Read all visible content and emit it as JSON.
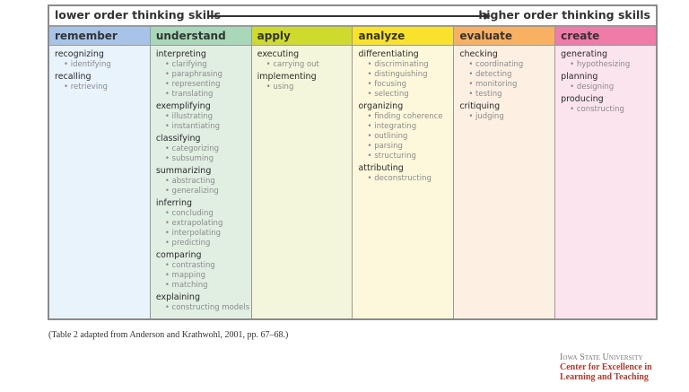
{
  "header": {
    "lower": "lower order thinking skills",
    "higher": "higher order thinking skills"
  },
  "columns": [
    {
      "title": "remember",
      "head_color": "#a7c4e8",
      "body_color": "#e8f3fc",
      "groups": [
        {
          "verb": "recognizing",
          "subs": [
            "identifying"
          ]
        },
        {
          "verb": "recalling",
          "subs": [
            "retrieving"
          ]
        }
      ]
    },
    {
      "title": "understand",
      "head_color": "#a8d8b8",
      "body_color": "#e1efe3",
      "groups": [
        {
          "verb": "interpreting",
          "subs": [
            "clarifying",
            "paraphrasing",
            "representing",
            "translating"
          ]
        },
        {
          "verb": "exemplifying",
          "subs": [
            "illustrating",
            "instantiating"
          ]
        },
        {
          "verb": "classifying",
          "subs": [
            "categorizing",
            "subsuming"
          ]
        },
        {
          "verb": "summarizing",
          "subs": [
            "abstracting",
            "generalizing"
          ]
        },
        {
          "verb": "inferring",
          "subs": [
            "concluding",
            "extrapolating",
            "interpolating",
            "predicting"
          ]
        },
        {
          "verb": "comparing",
          "subs": [
            "contrasting",
            "mapping",
            "matching"
          ]
        },
        {
          "verb": "explaining",
          "subs": [
            "constructing models"
          ]
        }
      ]
    },
    {
      "title": "apply",
      "head_color": "#cfdb2c",
      "body_color": "#f3f6da",
      "groups": [
        {
          "verb": "executing",
          "subs": [
            "carrying out"
          ]
        },
        {
          "verb": "implementing",
          "subs": [
            "using"
          ]
        }
      ]
    },
    {
      "title": "analyze",
      "head_color": "#f9e22b",
      "body_color": "#fdf8dc",
      "groups": [
        {
          "verb": "differentiating",
          "subs": [
            "discriminating",
            "distinguishing",
            "focusing",
            "selecting"
          ]
        },
        {
          "verb": "organizing",
          "subs": [
            "finding coherence",
            "integrating",
            "outlining",
            "parsing",
            "structuring"
          ]
        },
        {
          "verb": "attributing",
          "subs": [
            "deconstructing"
          ]
        }
      ]
    },
    {
      "title": "evaluate",
      "head_color": "#f8b062",
      "body_color": "#fdf0e3",
      "groups": [
        {
          "verb": "checking",
          "subs": [
            "coordinating",
            "detecting",
            "monitoring",
            "testing"
          ]
        },
        {
          "verb": "critiquing",
          "subs": [
            "judging"
          ]
        }
      ]
    },
    {
      "title": "create",
      "head_color": "#f07aa8",
      "body_color": "#fce4ee",
      "groups": [
        {
          "verb": "generating",
          "subs": [
            "hypothesizing"
          ]
        },
        {
          "verb": "planning",
          "subs": [
            "designing"
          ]
        },
        {
          "verb": "producing",
          "subs": [
            "constructing"
          ]
        }
      ]
    }
  ],
  "caption": "(Table 2 adapted from Anderson and Krathwohl, 2001, pp. 67–68.)",
  "logo": {
    "university": "Iowa State University",
    "line1": "Center for Excellence in",
    "line2": "Learning and Teaching"
  }
}
